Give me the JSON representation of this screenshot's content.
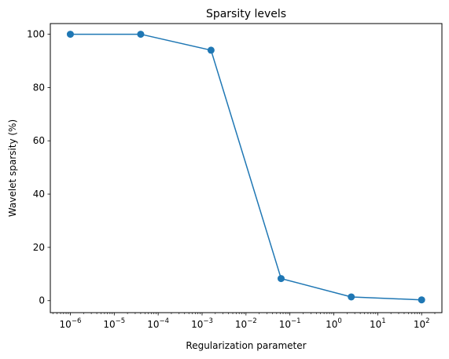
{
  "chart_data": {
    "type": "line",
    "title": "Sparsity levels",
    "xlabel": "Regularization parameter",
    "ylabel": "Wavelet sparsity (%)",
    "x_scale": "log",
    "xlim": [
      3.5e-07,
      290
    ],
    "ylim": [
      -4.5,
      104
    ],
    "x_ticks": [
      {
        "value": 1e-06,
        "base": "10",
        "exp": "−6"
      },
      {
        "value": 1e-05,
        "base": "10",
        "exp": "−5"
      },
      {
        "value": 0.0001,
        "base": "10",
        "exp": "−4"
      },
      {
        "value": 0.001,
        "base": "10",
        "exp": "−3"
      },
      {
        "value": 0.01,
        "base": "10",
        "exp": "−2"
      },
      {
        "value": 0.1,
        "base": "10",
        "exp": "−1"
      },
      {
        "value": 1,
        "base": "10",
        "exp": "0"
      },
      {
        "value": 10,
        "base": "10",
        "exp": "1"
      },
      {
        "value": 100,
        "base": "10",
        "exp": "2"
      }
    ],
    "y_ticks": [
      0,
      20,
      40,
      60,
      80,
      100
    ],
    "grid": false,
    "series": [
      {
        "color": "#1f77b4",
        "marker": "circle",
        "x": [
          1e-06,
          4e-05,
          0.0016,
          0.063,
          2.5,
          100
        ],
        "y": [
          100,
          100,
          94,
          8.3,
          1.4,
          0.3
        ]
      }
    ]
  }
}
